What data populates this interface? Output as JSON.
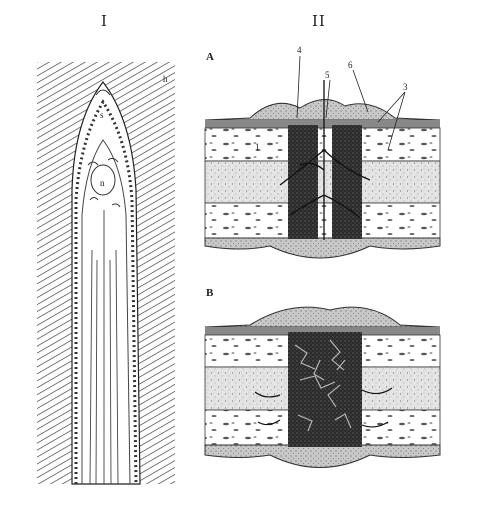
{
  "figure": {
    "panel_titles": {
      "left": "I",
      "right": "II"
    },
    "left_labels": {
      "h": "h",
      "s": "s",
      "n": "n"
    },
    "right_labels": {
      "subpanel_a": "A",
      "subpanel_b": "B",
      "callout_4": "4",
      "callout_6": "6",
      "callout_5": "5",
      "callout_3": "3",
      "callout_1": "1"
    }
  }
}
